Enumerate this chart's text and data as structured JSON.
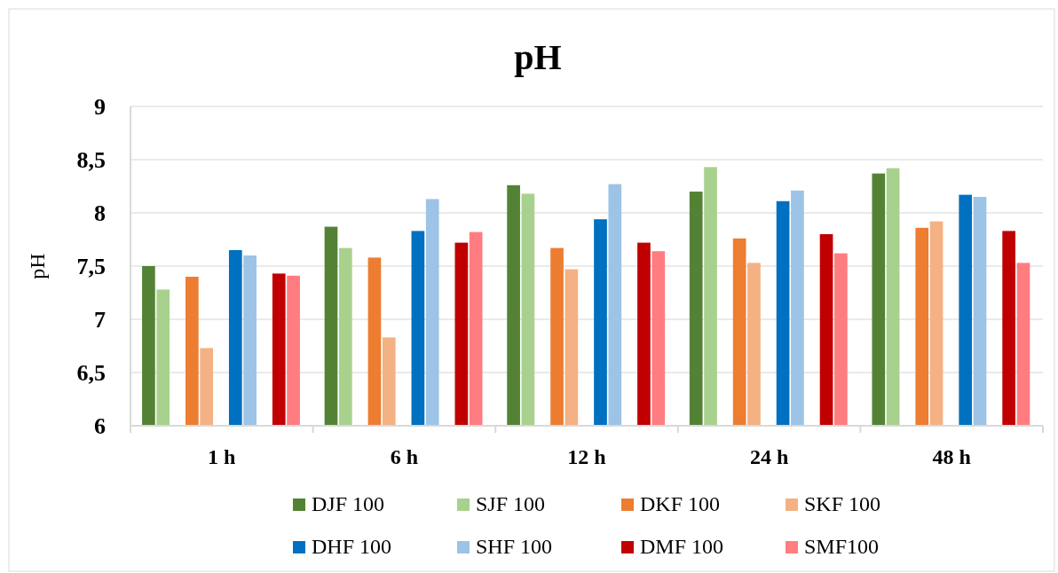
{
  "chart_data": {
    "type": "bar",
    "title": "pH",
    "ylabel": "pH",
    "categories": [
      "1 h",
      "6 h",
      "12 h",
      "24 h",
      "48 h"
    ],
    "series": [
      {
        "name": "DJF 100",
        "color": "#548235",
        "values": [
          7.5,
          7.87,
          8.26,
          8.2,
          8.37
        ]
      },
      {
        "name": "SJF 100",
        "color": "#a9d18e",
        "values": [
          7.28,
          7.67,
          8.18,
          8.43,
          8.42
        ]
      },
      {
        "name": "DKF 100",
        "color": "#ed7d31",
        "values": [
          7.4,
          7.58,
          7.67,
          7.76,
          7.86
        ]
      },
      {
        "name": "SKF 100",
        "color": "#f4b183",
        "values": [
          6.73,
          6.83,
          7.47,
          7.53,
          7.92
        ]
      },
      {
        "name": "DHF 100",
        "color": "#0070c0",
        "values": [
          7.65,
          7.83,
          7.94,
          8.11,
          8.17
        ]
      },
      {
        "name": "SHF 100",
        "color": "#9dc3e6",
        "values": [
          7.6,
          8.13,
          8.27,
          8.21,
          8.15
        ]
      },
      {
        "name": "DMF 100",
        "color": "#c00000",
        "values": [
          7.43,
          7.72,
          7.72,
          7.8,
          7.83
        ]
      },
      {
        "name": "SMF100",
        "color": "#ff7c80",
        "values": [
          7.41,
          7.82,
          7.64,
          7.62,
          7.53
        ]
      }
    ],
    "ylim": [
      6,
      9
    ],
    "yticks": [
      {
        "value": 6,
        "label": "6"
      },
      {
        "value": 6.5,
        "label": "6,5"
      },
      {
        "value": 7,
        "label": "7"
      },
      {
        "value": 7.5,
        "label": "7,5"
      },
      {
        "value": 8,
        "label": "8"
      },
      {
        "value": 8.5,
        "label": "8,5"
      },
      {
        "value": 9,
        "label": "9"
      }
    ],
    "grid": "y",
    "legend": "bottom"
  }
}
